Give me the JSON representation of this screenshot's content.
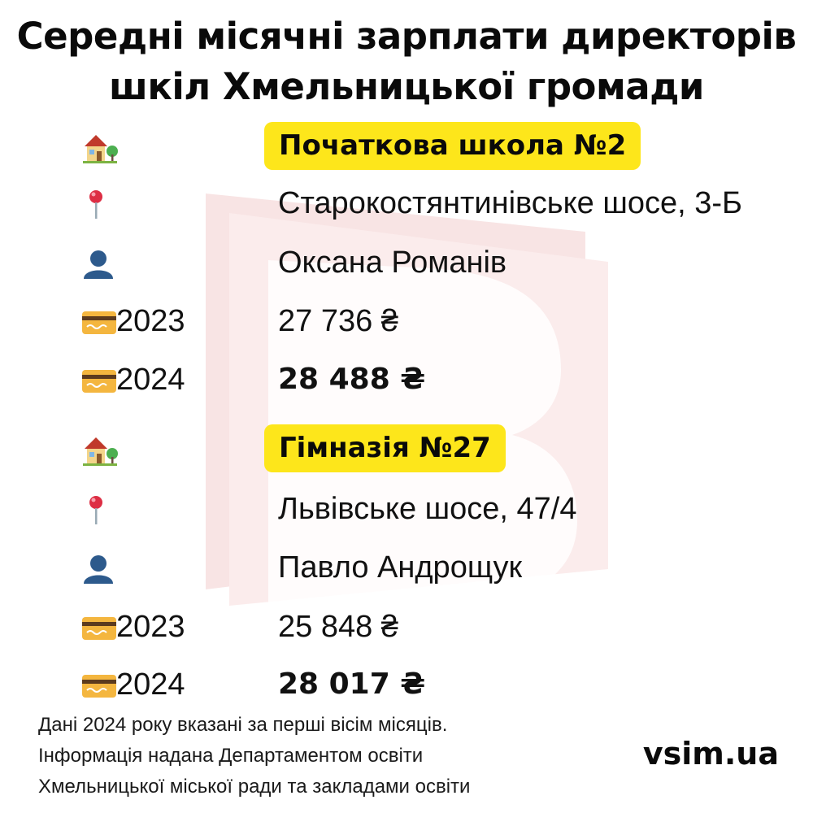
{
  "title": {
    "line1": "Середні місячні зарплати директорів",
    "line2": "шкіл Хмельницької громади"
  },
  "schools": [
    {
      "name": "Початкова школа №2",
      "address": "Старокостянтинівське шосе, 3-Б",
      "director": "Оксана Романів",
      "salaries": [
        {
          "year": "2023",
          "amount": "27 736 ₴"
        },
        {
          "year": "2024",
          "amount": "28 488 ₴"
        }
      ]
    },
    {
      "name": "Гімназія №27",
      "address": "Львівське шосе, 47/4",
      "director": "Павло Андрощук",
      "salaries": [
        {
          "year": "2023",
          "amount": "25 848 ₴"
        },
        {
          "year": "2024",
          "amount": "28 017 ₴"
        }
      ]
    }
  ],
  "icons": {
    "school": "house-with-garden-icon",
    "location": "round-pushpin-icon",
    "person": "bust-silhouette-icon",
    "salary": "credit-card-icon"
  },
  "footer": {
    "line1": "Дані 2024 року вказані за перші вісім місяців.",
    "line2": "Інформація надана Департаментом освіти",
    "line3": "Хмельницької міської ради та закладами освіти"
  },
  "brand": "vsim.ua",
  "colors": {
    "highlight": "#fde61b",
    "watermark": "#f8e3e3",
    "text": "#111111"
  }
}
